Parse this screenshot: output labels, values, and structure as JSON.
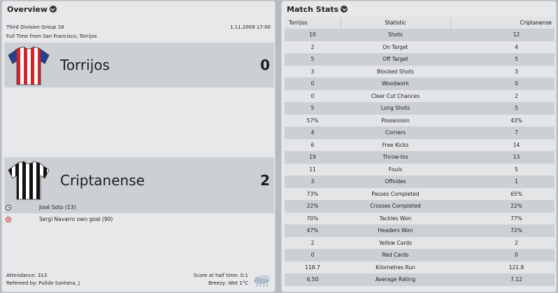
{
  "overview": {
    "title": "Overview",
    "competition": "Third Division Group 18",
    "datetime": "1.11.2009 17:00",
    "result_line": "Full Time from San Francisco, Torrijos",
    "home": {
      "name": "Torrijos",
      "score": "0"
    },
    "away": {
      "name": "Criptanense",
      "score": "2"
    },
    "scorers": [
      {
        "text": "José Soto (13)",
        "type": "goal"
      },
      {
        "text": "Sergi Navarro own goal (90)",
        "type": "own-goal"
      }
    ],
    "attendance": "Attendance: 313",
    "referee": "Refereed by: Pulido Santana, J",
    "halftime": "Score at half time: 0:1",
    "weather": "Breezy, Wet 1°C",
    "weather_icon": "cloud-rain-icon"
  },
  "stats": {
    "title": "Match Stats",
    "headers": {
      "home": "Torrijos",
      "stat": "Statistic",
      "away": "Criptanense"
    },
    "rows": [
      {
        "home": "10",
        "stat": "Shots",
        "away": "12"
      },
      {
        "home": "2",
        "stat": "On Target",
        "away": "4"
      },
      {
        "home": "5",
        "stat": "Off Target",
        "away": "5"
      },
      {
        "home": "3",
        "stat": "Blocked Shots",
        "away": "3"
      },
      {
        "home": "0",
        "stat": "Woodwork",
        "away": "0"
      },
      {
        "home": "0",
        "stat": "Clear Cut Chances",
        "away": "2"
      },
      {
        "home": "5",
        "stat": "Long Shots",
        "away": "5"
      },
      {
        "home": "57%",
        "stat": "Possession",
        "away": "43%"
      },
      {
        "home": "4",
        "stat": "Corners",
        "away": "7"
      },
      {
        "home": "6",
        "stat": "Free Kicks",
        "away": "14"
      },
      {
        "home": "19",
        "stat": "Throw-Ins",
        "away": "13"
      },
      {
        "home": "11",
        "stat": "Fouls",
        "away": "5"
      },
      {
        "home": "3",
        "stat": "Offsides",
        "away": "1"
      },
      {
        "home": "73%",
        "stat": "Passes Completed",
        "away": "65%"
      },
      {
        "home": "22%",
        "stat": "Crosses Completed",
        "away": "22%"
      },
      {
        "home": "70%",
        "stat": "Tackles Won",
        "away": "77%"
      },
      {
        "home": "47%",
        "stat": "Headers Won",
        "away": "72%"
      },
      {
        "home": "2",
        "stat": "Yellow Cards",
        "away": "2"
      },
      {
        "home": "0",
        "stat": "Red Cards",
        "away": "0"
      },
      {
        "home": "118.7",
        "stat": "Kilometres Run",
        "away": "121.8"
      },
      {
        "home": "6.50",
        "stat": "Average Rating",
        "away": "7.12"
      }
    ]
  },
  "colors": {
    "home_kit_primary": "#d8232a",
    "home_kit_secondary": "#ffffff",
    "away_kit_primary": "#111111",
    "away_kit_secondary": "#ffffff"
  }
}
